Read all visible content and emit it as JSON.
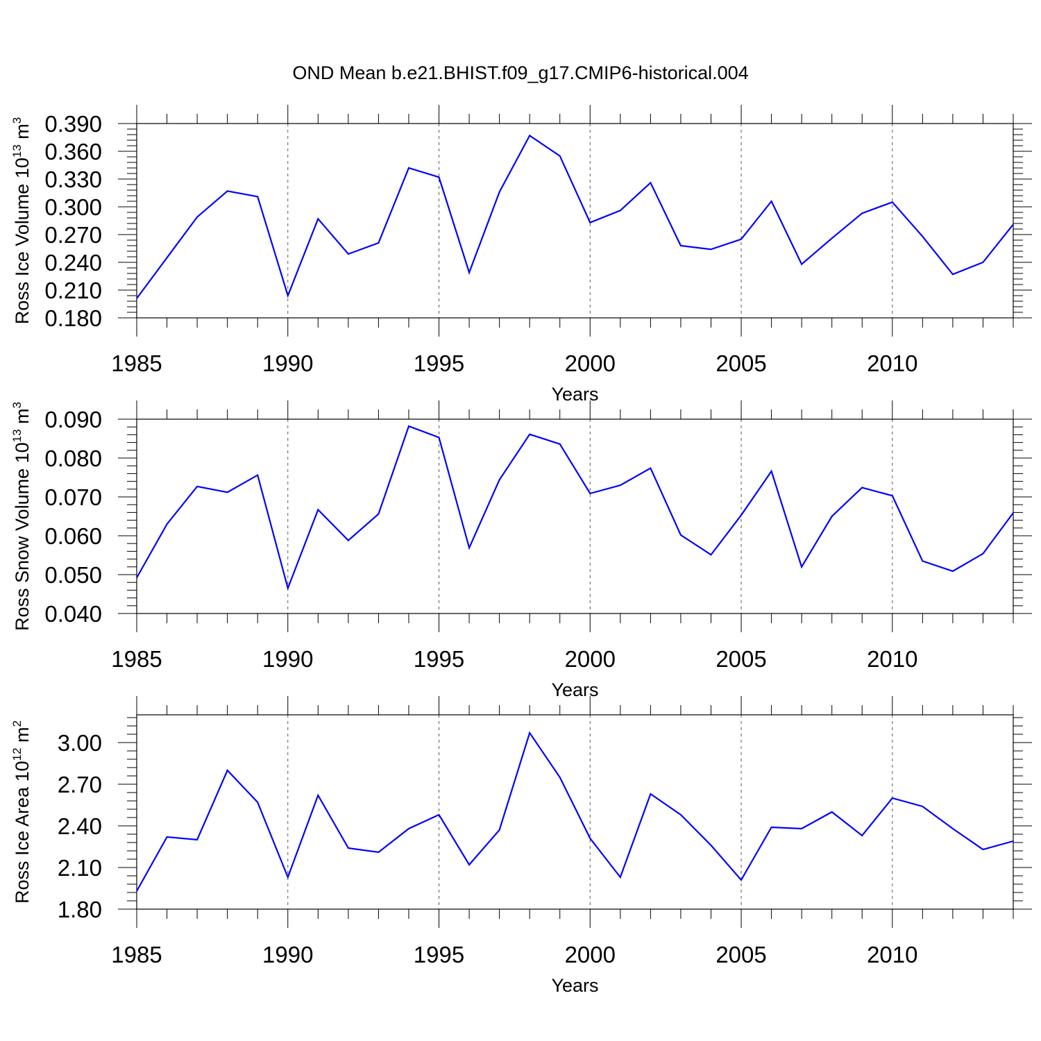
{
  "chart_data": [
    {
      "type": "line",
      "title": "OND Mean b.e21.BHIST.f09_g17.CMIP6-historical.004",
      "xlabel": "Years",
      "ylabel": "Ross Ice Volume 10",
      "ylabel_exp": "13",
      "ylabel_unit": " m",
      "ylabel_unit_exp": "3",
      "xlim": [
        1985,
        2014
      ],
      "ylim": [
        0.18,
        0.39
      ],
      "xticks": [
        1985,
        1990,
        1995,
        2000,
        2005,
        2010
      ],
      "yticks": [
        "0.180",
        "0.210",
        "0.240",
        "0.270",
        "0.300",
        "0.330",
        "0.360",
        "0.390"
      ],
      "ytick_values": [
        0.18,
        0.21,
        0.24,
        0.27,
        0.3,
        0.33,
        0.36,
        0.39
      ],
      "series": [
        {
          "name": "Ross Ice Volume",
          "color": "#0000ff",
          "x": [
            1985,
            1986,
            1987,
            1988,
            1989,
            1990,
            1991,
            1992,
            1993,
            1994,
            1995,
            1996,
            1997,
            1998,
            1999,
            2000,
            2001,
            2002,
            2003,
            2004,
            2005,
            2006,
            2007,
            2008,
            2009,
            2010,
            2011,
            2012,
            2013,
            2014
          ],
          "values": [
            0.201,
            0.245,
            0.289,
            0.317,
            0.311,
            0.204,
            0.287,
            0.249,
            0.261,
            0.342,
            0.332,
            0.229,
            0.316,
            0.377,
            0.355,
            0.283,
            0.296,
            0.326,
            0.258,
            0.254,
            0.265,
            0.306,
            0.238,
            0.266,
            0.293,
            0.305,
            0.268,
            0.227,
            0.24,
            0.281
          ]
        }
      ]
    },
    {
      "type": "line",
      "title": "",
      "xlabel": "Years",
      "ylabel": "Ross Snow Volume 10",
      "ylabel_exp": "13",
      "ylabel_unit": " m",
      "ylabel_unit_exp": "3",
      "xlim": [
        1985,
        2014
      ],
      "ylim": [
        0.04,
        0.09
      ],
      "xticks": [
        1985,
        1990,
        1995,
        2000,
        2005,
        2010
      ],
      "yticks": [
        "0.040",
        "0.050",
        "0.060",
        "0.070",
        "0.080",
        "0.090"
      ],
      "ytick_values": [
        0.04,
        0.05,
        0.06,
        0.07,
        0.08,
        0.09
      ],
      "series": [
        {
          "name": "Ross Snow Volume",
          "color": "#0000ff",
          "x": [
            1985,
            1986,
            1987,
            1988,
            1989,
            1990,
            1991,
            1992,
            1993,
            1994,
            1995,
            1996,
            1997,
            1998,
            1999,
            2000,
            2001,
            2002,
            2003,
            2004,
            2005,
            2006,
            2007,
            2008,
            2009,
            2010,
            2011,
            2012,
            2013,
            2014
          ],
          "values": [
            0.0492,
            0.063,
            0.0727,
            0.0712,
            0.0756,
            0.0465,
            0.0667,
            0.0588,
            0.0656,
            0.0882,
            0.0853,
            0.0569,
            0.0744,
            0.0861,
            0.0836,
            0.0709,
            0.073,
            0.0774,
            0.0602,
            0.0551,
            0.0653,
            0.0766,
            0.052,
            0.065,
            0.0724,
            0.0703,
            0.0535,
            0.0509,
            0.0554,
            0.0659
          ]
        }
      ]
    },
    {
      "type": "line",
      "title": "",
      "xlabel": "Years",
      "ylabel": "Ross Ice Area 10",
      "ylabel_exp": "12",
      "ylabel_unit": " m",
      "ylabel_unit_exp": "2",
      "xlim": [
        1985,
        2014
      ],
      "ylim": [
        1.8,
        3.2
      ],
      "xticks": [
        1985,
        1990,
        1995,
        2000,
        2005,
        2010
      ],
      "yticks": [
        "1.80",
        "2.10",
        "2.40",
        "2.70",
        "3.00"
      ],
      "ytick_values": [
        1.8,
        2.1,
        2.4,
        2.7,
        3.0
      ],
      "series": [
        {
          "name": "Ross Ice Area",
          "color": "#0000ff",
          "x": [
            1985,
            1986,
            1987,
            1988,
            1989,
            1990,
            1991,
            1992,
            1993,
            1994,
            1995,
            1996,
            1997,
            1998,
            1999,
            2000,
            2001,
            2002,
            2003,
            2004,
            2005,
            2006,
            2007,
            2008,
            2009,
            2010,
            2011,
            2012,
            2013,
            2014
          ],
          "values": [
            1.93,
            2.32,
            2.3,
            2.8,
            2.57,
            2.03,
            2.62,
            2.24,
            2.21,
            2.38,
            2.48,
            2.12,
            2.37,
            3.07,
            2.75,
            2.31,
            2.03,
            2.63,
            2.48,
            2.26,
            2.01,
            2.39,
            2.38,
            2.5,
            2.33,
            2.6,
            2.54,
            2.38,
            2.23,
            2.29
          ]
        }
      ]
    }
  ]
}
